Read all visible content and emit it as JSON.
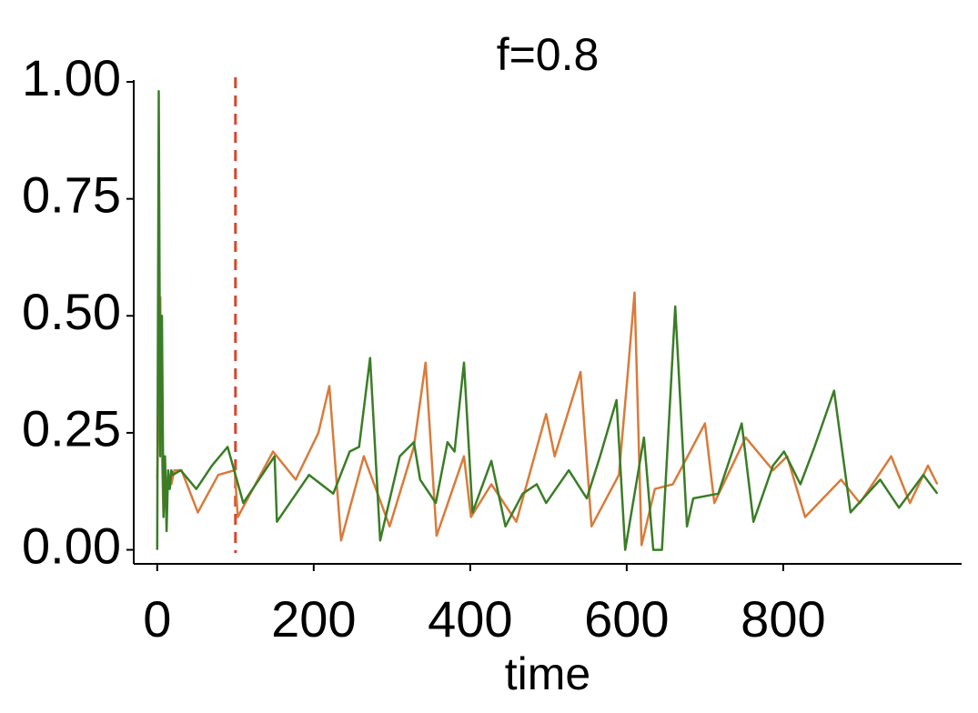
{
  "chart_data": {
    "type": "line",
    "title": "f=0.8",
    "x_label": "time",
    "xlim": [
      -30,
      1028
    ],
    "ylim": [
      -0.03,
      1.0
    ],
    "xticks": [
      0,
      200,
      400,
      600,
      800
    ],
    "yticks": [
      {
        "value": 0,
        "label": "0.00"
      },
      {
        "value": 0.25,
        "label": "0.25"
      },
      {
        "value": 0.5,
        "label": "0.50"
      },
      {
        "value": 0.75,
        "label": "0.75"
      },
      {
        "value": 1.0,
        "label": "1.00"
      }
    ],
    "vline": 100,
    "vline_color": "#d9452f",
    "series": [
      {
        "color": "#d97b3a",
        "x": [
          0,
          2,
          4,
          6,
          8,
          10,
          14,
          18,
          22,
          31,
          52,
          78,
          99,
          103,
          148,
          177,
          206,
          220,
          235,
          264,
          297,
          328,
          343,
          357,
          392,
          401,
          427,
          459,
          497,
          508,
          541,
          555,
          590,
          601,
          610,
          619,
          636,
          659,
          700,
          712,
          752,
          787,
          805,
          828,
          874,
          898,
          938,
          962,
          985,
          997
        ],
        "values": [
          0.15,
          0.3,
          0.54,
          0.2,
          0.08,
          0.12,
          0.16,
          0.14,
          0.17,
          0.17,
          0.08,
          0.16,
          0.17,
          0.07,
          0.21,
          0.15,
          0.25,
          0.35,
          0.02,
          0.2,
          0.05,
          0.22,
          0.4,
          0.03,
          0.2,
          0.07,
          0.14,
          0.06,
          0.29,
          0.2,
          0.38,
          0.05,
          0.16,
          0.37,
          0.55,
          0.01,
          0.13,
          0.14,
          0.27,
          0.1,
          0.24,
          0.17,
          0.2,
          0.07,
          0.15,
          0.1,
          0.2,
          0.1,
          0.18,
          0.14
        ]
      },
      {
        "color": "#3a7d26",
        "x": [
          0,
          2,
          4,
          6,
          8,
          10,
          12,
          14,
          16,
          18,
          20,
          30,
          50,
          70,
          90,
          110,
          150,
          153,
          194,
          225,
          246,
          258,
          272,
          285,
          310,
          328,
          336,
          356,
          371,
          380,
          392,
          403,
          427,
          445,
          467,
          485,
          497,
          526,
          549,
          566,
          587,
          598,
          613,
          622,
          634,
          645,
          662,
          677,
          685,
          717,
          747,
          762,
          787,
          801,
          822,
          840,
          865,
          886,
          924,
          948,
          979,
          997
        ],
        "values": [
          0.0,
          0.98,
          0.2,
          0.5,
          0.07,
          0.2,
          0.04,
          0.17,
          0.13,
          0.17,
          0.16,
          0.17,
          0.13,
          0.18,
          0.22,
          0.1,
          0.2,
          0.06,
          0.16,
          0.12,
          0.21,
          0.22,
          0.41,
          0.02,
          0.2,
          0.23,
          0.15,
          0.1,
          0.23,
          0.21,
          0.4,
          0.08,
          0.19,
          0.05,
          0.12,
          0.14,
          0.1,
          0.17,
          0.11,
          0.2,
          0.32,
          0.0,
          0.15,
          0.24,
          0.0,
          0.0,
          0.52,
          0.05,
          0.11,
          0.12,
          0.27,
          0.06,
          0.18,
          0.21,
          0.14,
          0.22,
          0.34,
          0.08,
          0.15,
          0.09,
          0.16,
          0.12
        ]
      }
    ]
  }
}
